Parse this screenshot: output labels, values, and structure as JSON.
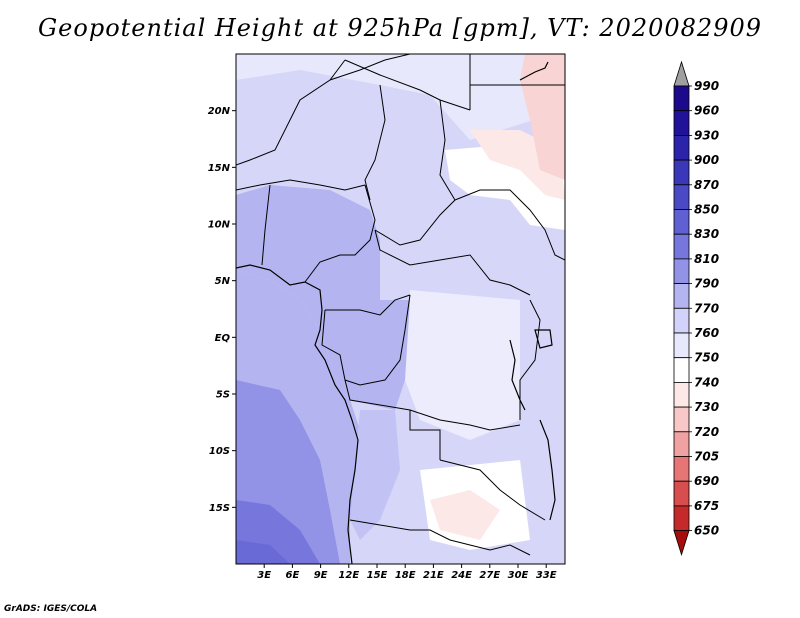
{
  "title": "Geopotential Height at 925hPa [gpm], VT: 2020082909",
  "credit": "GrADS: IGES/COLA",
  "map": {
    "lat_labels": [
      "20N",
      "15N",
      "10N",
      "5N",
      "EQ",
      "5S",
      "10S",
      "15S"
    ],
    "lon_labels": [
      "3E",
      "6E",
      "9E",
      "12E",
      "15E",
      "18E",
      "21E",
      "24E",
      "27E",
      "30E",
      "33E"
    ],
    "lat_values": [
      20,
      15,
      10,
      5,
      0,
      -5,
      -10,
      -15
    ],
    "lon_values": [
      3,
      6,
      9,
      12,
      15,
      18,
      21,
      24,
      27,
      30,
      33
    ],
    "lat_range": [
      -20,
      25
    ],
    "lon_range": [
      0,
      35
    ]
  },
  "colorbar": {
    "labels": [
      "990",
      "960",
      "930",
      "900",
      "870",
      "850",
      "830",
      "810",
      "790",
      "770",
      "760",
      "750",
      "740",
      "730",
      "720",
      "705",
      "690",
      "675",
      "650"
    ],
    "colors": [
      "#1c0a8c",
      "#22129a",
      "#2b23aa",
      "#3a37b8",
      "#4a4bc4",
      "#5f60d2",
      "#7676dc",
      "#9292e6",
      "#b4b4f0",
      "#d2d2fa",
      "#e8e8fd",
      "#ffffff",
      "#fde8e8",
      "#f8c8c8",
      "#f0a2a2",
      "#e67676",
      "#d84e4e",
      "#c42a2a",
      "#a80d0d"
    ]
  }
}
